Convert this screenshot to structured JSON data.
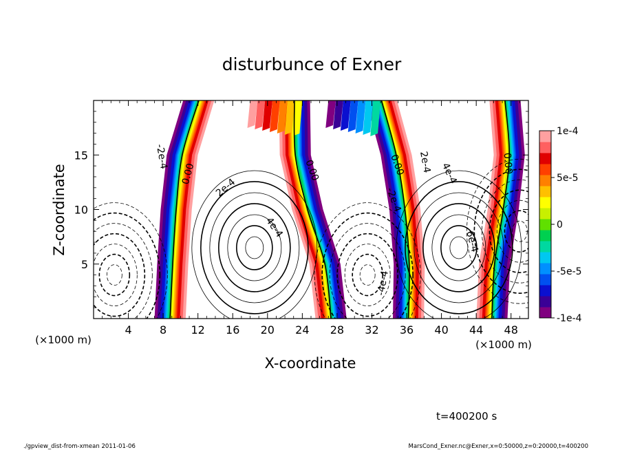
{
  "chart_data": {
    "type": "heatmap",
    "title": "disturbunce of Exner",
    "xlabel": "X-coordinate",
    "ylabel": "Z-coordinate",
    "x_unit": "(×1000 m)",
    "y_unit": "(×1000 m)",
    "xlim": [
      0,
      50
    ],
    "ylim": [
      0,
      20
    ],
    "x_ticks": [
      4,
      8,
      12,
      16,
      20,
      24,
      28,
      32,
      36,
      40,
      44,
      48
    ],
    "y_ticks": [
      5,
      10,
      15
    ],
    "colorbar": {
      "range": [
        -0.0001,
        0.0001
      ],
      "tick_labels": [
        "1e-4",
        "5e-5",
        "0",
        "-5e-5",
        "-1e-4"
      ],
      "tick_values": [
        0.0001,
        5e-05,
        0,
        -5e-05,
        -0.0001
      ],
      "colors": [
        "#800080",
        "#3a0096",
        "#0a10d0",
        "#0050f0",
        "#0090ff",
        "#00c8f0",
        "#00d8a0",
        "#00d050",
        "#60e000",
        "#c8f000",
        "#ffff00",
        "#ffc000",
        "#ff8000",
        "#ff4000",
        "#e00000",
        "#ff6060",
        "#ffa0a0"
      ]
    },
    "fronts": [
      {
        "label": "0.00",
        "points": [
          [
            8.8,
            0
          ],
          [
            9.1,
            5
          ],
          [
            9.5,
            10
          ],
          [
            10.2,
            15
          ],
          [
            12.1,
            20
          ]
        ]
      },
      {
        "label": "0.00",
        "points": [
          [
            27.3,
            0
          ],
          [
            26.6,
            5
          ],
          [
            24.6,
            10
          ],
          [
            23.2,
            15
          ],
          [
            23.1,
            20
          ]
        ]
      },
      {
        "label": "0.00",
        "points": [
          [
            36.2,
            0
          ],
          [
            36.3,
            5
          ],
          [
            35.8,
            10
          ],
          [
            34.8,
            15
          ],
          [
            33.1,
            20
          ]
        ]
      },
      {
        "label": "0.00",
        "points": [
          [
            45.8,
            0
          ],
          [
            46.1,
            5
          ],
          [
            47.1,
            10
          ],
          [
            47.8,
            15
          ],
          [
            47.3,
            20
          ]
        ]
      }
    ],
    "contour_labels": [
      "-2e-4",
      "0.00",
      "2e-4",
      "4e-4",
      "0.00",
      "0.00",
      "2e-4",
      "-2e-4",
      "-4e-4",
      "4e-4",
      "6e-4",
      "0.00"
    ],
    "centers": [
      {
        "x": 2.4,
        "z": 4.0,
        "type": "negative"
      },
      {
        "x": 18.5,
        "z": 6.5,
        "type": "positive"
      },
      {
        "x": 31.5,
        "z": 4.0,
        "type": "negative"
      },
      {
        "x": 42.0,
        "z": 6.5,
        "type": "positive"
      },
      {
        "x": 49.0,
        "z": 8.0,
        "type": "negative"
      }
    ]
  },
  "annotations": {
    "time": "t=400200 s",
    "footer_left": "./gpview_dist-from-xmean  2011-01-06",
    "footer_right": "MarsCond_Exner.nc@Exner,x=0:50000,z=0:20000,t=400200"
  }
}
